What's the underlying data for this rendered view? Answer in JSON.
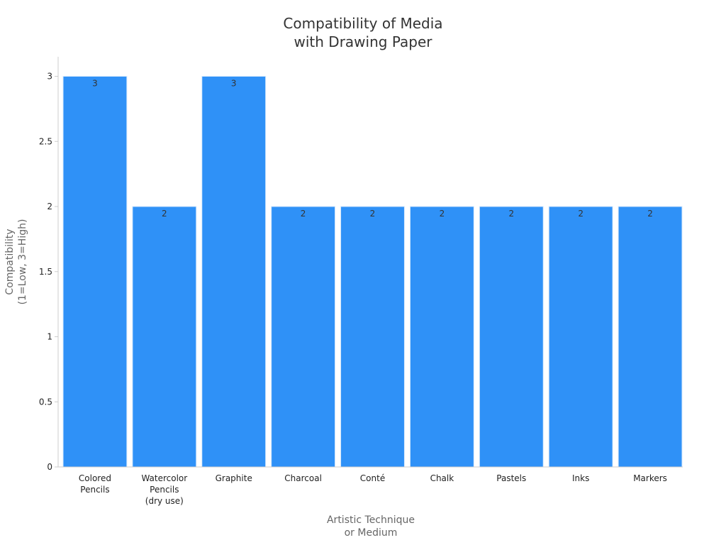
{
  "chart_data": {
    "type": "bar",
    "title": [
      "Compatibility of Media",
      "with Drawing Paper"
    ],
    "xlabel": [
      "Artistic Technique",
      "or Medium"
    ],
    "ylabel": [
      "Compatibility",
      "(1=Low, 3=High)"
    ],
    "categories": [
      [
        "Colored",
        "Pencils"
      ],
      [
        "Watercolor",
        "Pencils",
        "(dry use)"
      ],
      [
        "Graphite"
      ],
      [
        "Charcoal"
      ],
      [
        "Conté"
      ],
      [
        "Chalk"
      ],
      [
        "Pastels"
      ],
      [
        "Inks"
      ],
      [
        "Markers"
      ]
    ],
    "values": [
      3,
      2,
      3,
      2,
      2,
      2,
      2,
      2,
      2
    ],
    "data_labels": [
      "3",
      "2",
      "3",
      "2",
      "2",
      "2",
      "2",
      "2",
      "2"
    ],
    "yticks": [
      0,
      0.5,
      1,
      1.5,
      2,
      2.5,
      3
    ],
    "ytick_labels": [
      "0",
      "0.5",
      "1",
      "1.5",
      "2",
      "2.5",
      "3"
    ],
    "ylim": [
      0,
      3.15
    ],
    "grid": false,
    "legend": "none",
    "bar_color": "#2f91f7",
    "axis_color": "#cccccc"
  }
}
